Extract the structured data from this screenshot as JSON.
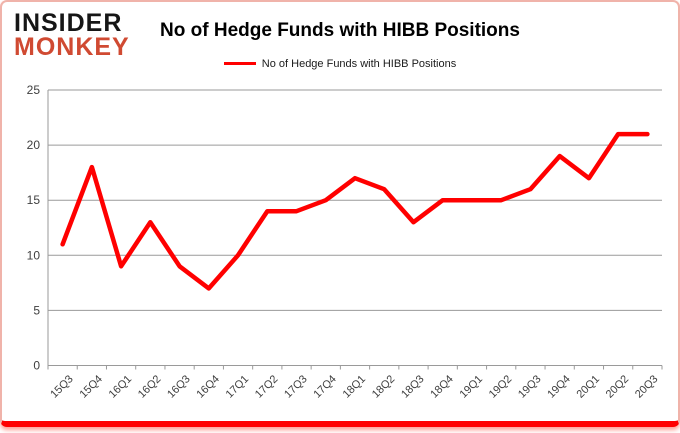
{
  "logo": {
    "line1": "INSIDER",
    "line2": "MONKEY"
  },
  "header": {
    "title": "No of Hedge Funds with HIBB Positions",
    "legend_label": "No of Hedge Funds with HIBB Positions"
  },
  "colors": {
    "series": "#ff0000",
    "grid": "#9a9a9a",
    "tick-text": "#3f3f3f",
    "logo-black": "#161616",
    "logo-red": "#d04a32",
    "border-pink": "#f0b3aa",
    "bottom-red": "#ff0000"
  },
  "chart_data": {
    "type": "line",
    "title": "No of Hedge Funds with HIBB Positions",
    "legend": [
      "No of Hedge Funds with HIBB Positions"
    ],
    "legend_position": "top",
    "grid": "horizontal",
    "categories": [
      "15Q3",
      "15Q4",
      "16Q1",
      "16Q2",
      "16Q3",
      "16Q4",
      "17Q1",
      "17Q2",
      "17Q3",
      "17Q4",
      "18Q1",
      "18Q2",
      "18Q3",
      "18Q4",
      "19Q1",
      "19Q2",
      "19Q3",
      "19Q4",
      "20Q1",
      "20Q2",
      "20Q3"
    ],
    "series": [
      {
        "name": "No of Hedge Funds with HIBB Positions",
        "color": "#ff0000",
        "values": [
          11,
          18,
          9,
          13,
          9,
          7,
          10,
          14,
          14,
          15,
          17,
          16,
          13,
          15,
          15,
          15,
          16,
          19,
          17,
          21,
          21
        ]
      }
    ],
    "xlabel": "",
    "ylabel": "",
    "ylim": [
      0,
      25
    ],
    "ytick_step": 5
  }
}
